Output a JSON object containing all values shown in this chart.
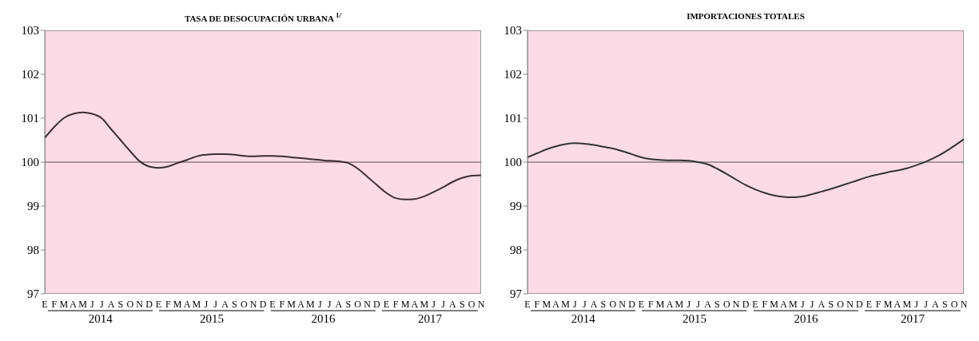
{
  "chart_data": [
    {
      "type": "line",
      "title": "TASA DE DESOCUPACIÓN URBANA $^{1/}$",
      "categories": [
        "E",
        "F",
        "M",
        "A",
        "M",
        "J",
        "J",
        "A",
        "S",
        "O",
        "N",
        "D",
        "E",
        "F",
        "M",
        "A",
        "M",
        "J",
        "J",
        "A",
        "S",
        "O",
        "N",
        "D",
        "E",
        "F",
        "M",
        "A",
        "M",
        "J",
        "J",
        "A",
        "S",
        "O",
        "N",
        "D",
        "E",
        "F",
        "M",
        "A",
        "M",
        "J",
        "J",
        "A",
        "S",
        "O",
        "N"
      ],
      "series": [
        {
          "color": "#3a2e32",
          "values": [
            100.55,
            100.8,
            101.0,
            101.1,
            101.13,
            101.1,
            101.0,
            100.75,
            100.5,
            100.25,
            100.02,
            99.9,
            99.87,
            99.9,
            99.98,
            100.05,
            100.13,
            100.17,
            100.18,
            100.18,
            100.17,
            100.14,
            100.13,
            100.14,
            100.14,
            100.13,
            100.11,
            100.09,
            100.07,
            100.05,
            100.03,
            100.02,
            99.98,
            99.85,
            99.67,
            99.48,
            99.3,
            99.18,
            99.15,
            99.16,
            99.22,
            99.32,
            99.43,
            99.55,
            99.64,
            99.69,
            99.7
          ]
        }
      ],
      "ylim": [
        97,
        103
      ],
      "yticks": [
        97,
        98,
        99,
        100,
        101,
        102,
        103
      ],
      "ref_lines": [
        {
          "axis": "y",
          "value": 100,
          "color": "#5a4a50"
        }
      ],
      "annotations": [
        "2014",
        "2015",
        "2016",
        "2017"
      ],
      "grid": false
    },
    {
      "type": "line",
      "title": "IMPORTACIONES TOTALES",
      "categories": [
        "E",
        "F",
        "M",
        "A",
        "M",
        "J",
        "J",
        "A",
        "S",
        "O",
        "N",
        "D",
        "E",
        "F",
        "M",
        "A",
        "M",
        "J",
        "J",
        "A",
        "S",
        "O",
        "N",
        "D",
        "E",
        "F",
        "M",
        "A",
        "M",
        "J",
        "J",
        "A",
        "S",
        "O",
        "N",
        "D",
        "E",
        "F",
        "M",
        "A",
        "M",
        "J",
        "J",
        "A",
        "S",
        "O",
        "N"
      ],
      "series": [
        {
          "color": "#333333",
          "values": [
            100.11,
            100.2,
            100.29,
            100.36,
            100.41,
            100.43,
            100.42,
            100.39,
            100.35,
            100.31,
            100.25,
            100.18,
            100.11,
            100.07,
            100.05,
            100.04,
            100.04,
            100.03,
            100.0,
            99.95,
            99.85,
            99.73,
            99.6,
            99.48,
            99.38,
            99.3,
            99.24,
            99.21,
            99.2,
            99.22,
            99.27,
            99.33,
            99.39,
            99.46,
            99.53,
            99.6,
            99.67,
            99.72,
            99.77,
            99.81,
            99.86,
            99.93,
            100.01,
            100.11,
            100.23,
            100.37,
            100.52
          ]
        }
      ],
      "ylim": [
        97,
        103
      ],
      "yticks": [
        97,
        98,
        99,
        100,
        101,
        102,
        103
      ],
      "ref_lines": [
        {
          "axis": "y",
          "value": 100,
          "color": "#555555"
        }
      ],
      "annotations": [
        "2014",
        "2015",
        "2016",
        "2017"
      ],
      "grid": false
    }
  ]
}
